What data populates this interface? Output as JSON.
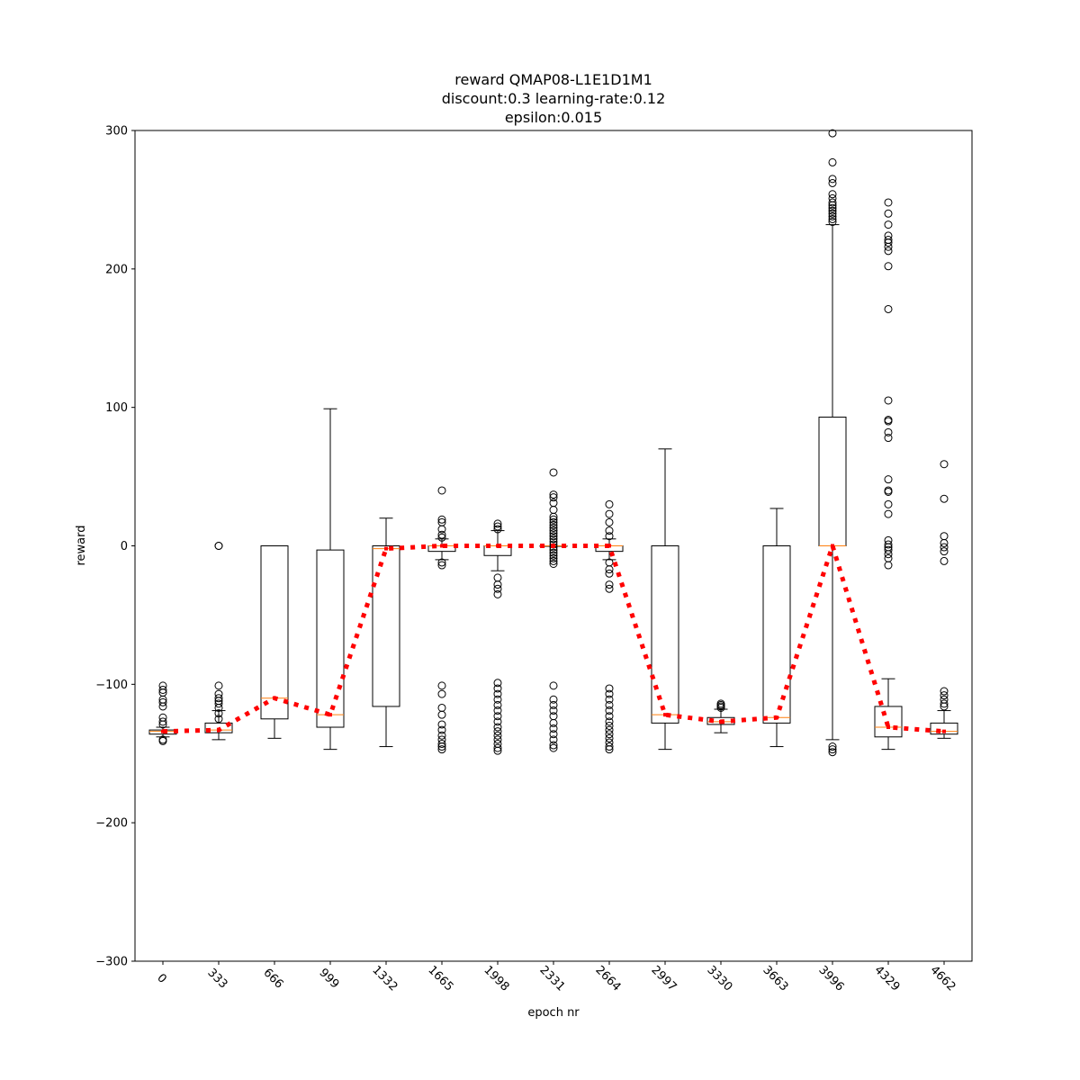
{
  "chart_data": {
    "type": "box",
    "title_lines": [
      "reward QMAP08-L1E1D1M1",
      "discount:0.3 learning-rate:0.12",
      "epsilon:0.015"
    ],
    "xlabel": "epoch nr",
    "ylabel": "reward",
    "ylim": [
      -300,
      300
    ],
    "yticks": [
      -300,
      -200,
      -100,
      0,
      100,
      200,
      300
    ],
    "categories": [
      "0",
      "333",
      "666",
      "999",
      "1332",
      "1665",
      "1998",
      "2331",
      "2664",
      "2997",
      "3330",
      "3663",
      "3996",
      "4329",
      "4662"
    ],
    "boxes": [
      {
        "q1": -136,
        "median": -134,
        "q3": -133,
        "whislo": -138,
        "whishi": -131,
        "fliers": [
          -101,
          -104,
          -106,
          -111,
          -113,
          -116,
          -124,
          -127,
          -129,
          -140,
          -141
        ]
      },
      {
        "q1": -135,
        "median": -133,
        "q3": -128,
        "whislo": -140,
        "whishi": -119,
        "fliers": [
          0,
          0,
          -101,
          -107,
          -110,
          -112,
          -114,
          -117,
          -121,
          -125
        ]
      },
      {
        "q1": -125,
        "median": -110,
        "q3": 0,
        "whislo": -139,
        "whishi": 0,
        "fliers": []
      },
      {
        "q1": -131,
        "median": -122,
        "q3": -3,
        "whislo": -147,
        "whishi": 99,
        "fliers": []
      },
      {
        "q1": -116,
        "median": -2,
        "q3": 0,
        "whislo": -145,
        "whishi": 20,
        "fliers": []
      },
      {
        "q1": -4,
        "median": 0,
        "q3": 0,
        "whislo": -10,
        "whishi": 5,
        "fliers": [
          40,
          19,
          17,
          12,
          8,
          6,
          -12,
          -14,
          -101,
          -107,
          -117,
          -122,
          -129,
          -133,
          -137,
          -140,
          -143,
          -145,
          -147
        ]
      },
      {
        "q1": -7,
        "median": 0,
        "q3": 0,
        "whislo": -18,
        "whishi": 11,
        "fliers": [
          16,
          14,
          12,
          -23,
          -28,
          -31,
          -35,
          -99,
          -103,
          -107,
          -111,
          -115,
          -119,
          -123,
          -127,
          -131,
          -134,
          -137,
          -140,
          -143,
          -146,
          -148
        ]
      },
      {
        "q1": 0,
        "median": 0,
        "q3": 0,
        "whislo": 0,
        "whishi": 0,
        "fliers": [
          53,
          37,
          35,
          31,
          26,
          21,
          19,
          17,
          15,
          13,
          11,
          9,
          7,
          5,
          3,
          1,
          -1,
          -3,
          -5,
          -7,
          -9,
          -11,
          -13,
          -101,
          -111,
          -115,
          -119,
          -123,
          -128,
          -132,
          -136,
          -140,
          -144,
          -146
        ]
      },
      {
        "q1": -4,
        "median": 0,
        "q3": 0,
        "whislo": -10,
        "whishi": 5,
        "fliers": [
          30,
          23,
          17,
          11,
          7,
          -12,
          -17,
          -20,
          -28,
          -31,
          -103,
          -107,
          -111,
          -115,
          -119,
          -123,
          -127,
          -130,
          -133,
          -136,
          -139,
          -142,
          -145,
          -147
        ]
      },
      {
        "q1": -128,
        "median": -122,
        "q3": 0,
        "whislo": -147,
        "whishi": 70,
        "fliers": []
      },
      {
        "q1": -129,
        "median": -127,
        "q3": -124,
        "whislo": -135,
        "whishi": -118,
        "fliers": [
          -114,
          -115,
          -116,
          -117
        ]
      },
      {
        "q1": -128,
        "median": -124,
        "q3": 0,
        "whislo": -145,
        "whishi": 27,
        "fliers": []
      },
      {
        "q1": 0,
        "median": 0,
        "q3": 93,
        "whislo": -140,
        "whishi": 232,
        "fliers": [
          298,
          277,
          265,
          262,
          254,
          251,
          248,
          246,
          244,
          242,
          240,
          238,
          236,
          234,
          -145,
          -147,
          -149
        ]
      },
      {
        "q1": -138,
        "median": -131,
        "q3": -116,
        "whislo": -147,
        "whishi": -96,
        "fliers": [
          248,
          240,
          232,
          224,
          221,
          219,
          216,
          213,
          202,
          171,
          105,
          91,
          90,
          82,
          78,
          48,
          40,
          39,
          30,
          23,
          4,
          1,
          -1,
          -3,
          -6,
          -9,
          -14
        ]
      },
      {
        "q1": -136,
        "median": -134,
        "q3": -128,
        "whislo": -139,
        "whishi": -119,
        "fliers": [
          59,
          34,
          7,
          2,
          -1,
          -4,
          -11,
          -105,
          -108,
          -111,
          -114,
          -116
        ]
      }
    ],
    "mean_line": {
      "values": [
        -134,
        -133,
        -110,
        -122,
        -2,
        0,
        0,
        0,
        0,
        -122,
        -127,
        -124,
        0,
        -131,
        -134
      ],
      "color": "#ff0000",
      "style": "dotted"
    },
    "colors": {
      "box": "#000000",
      "median": "#ff7f0e",
      "mean_line": "#ff0000"
    },
    "grid": false
  }
}
